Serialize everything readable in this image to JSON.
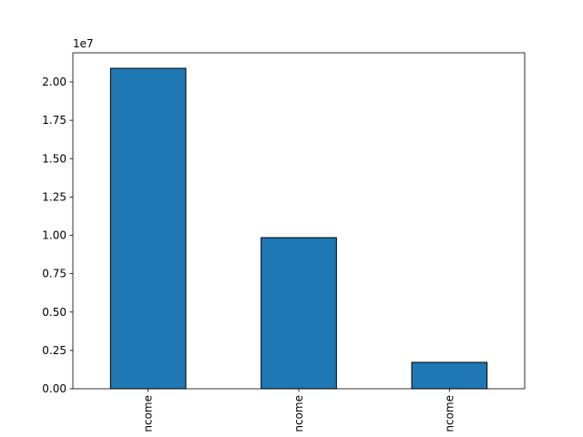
{
  "chart_data": {
    "type": "bar",
    "categories": [
      "ncome",
      "ncome",
      "ncome"
    ],
    "values": [
      2.089,
      0.985,
      0.172
    ],
    "color": "#1f77b4",
    "edgecolor": "#000000",
    "ylim": [
      0,
      2.19
    ],
    "yticks": [
      {
        "value": 0,
        "label": "0.00"
      },
      {
        "value": 0.25,
        "label": "0.25"
      },
      {
        "value": 0.5,
        "label": "0.50"
      },
      {
        "value": 0.75,
        "label": "0.75"
      },
      {
        "value": 1.0,
        "label": "1.00"
      },
      {
        "value": 1.25,
        "label": "1.25"
      },
      {
        "value": 1.5,
        "label": "1.50"
      },
      {
        "value": 1.75,
        "label": "1.75"
      },
      {
        "value": 2.0,
        "label": "2.00"
      }
    ],
    "y_offset_label": "1e7",
    "grid": false
  }
}
